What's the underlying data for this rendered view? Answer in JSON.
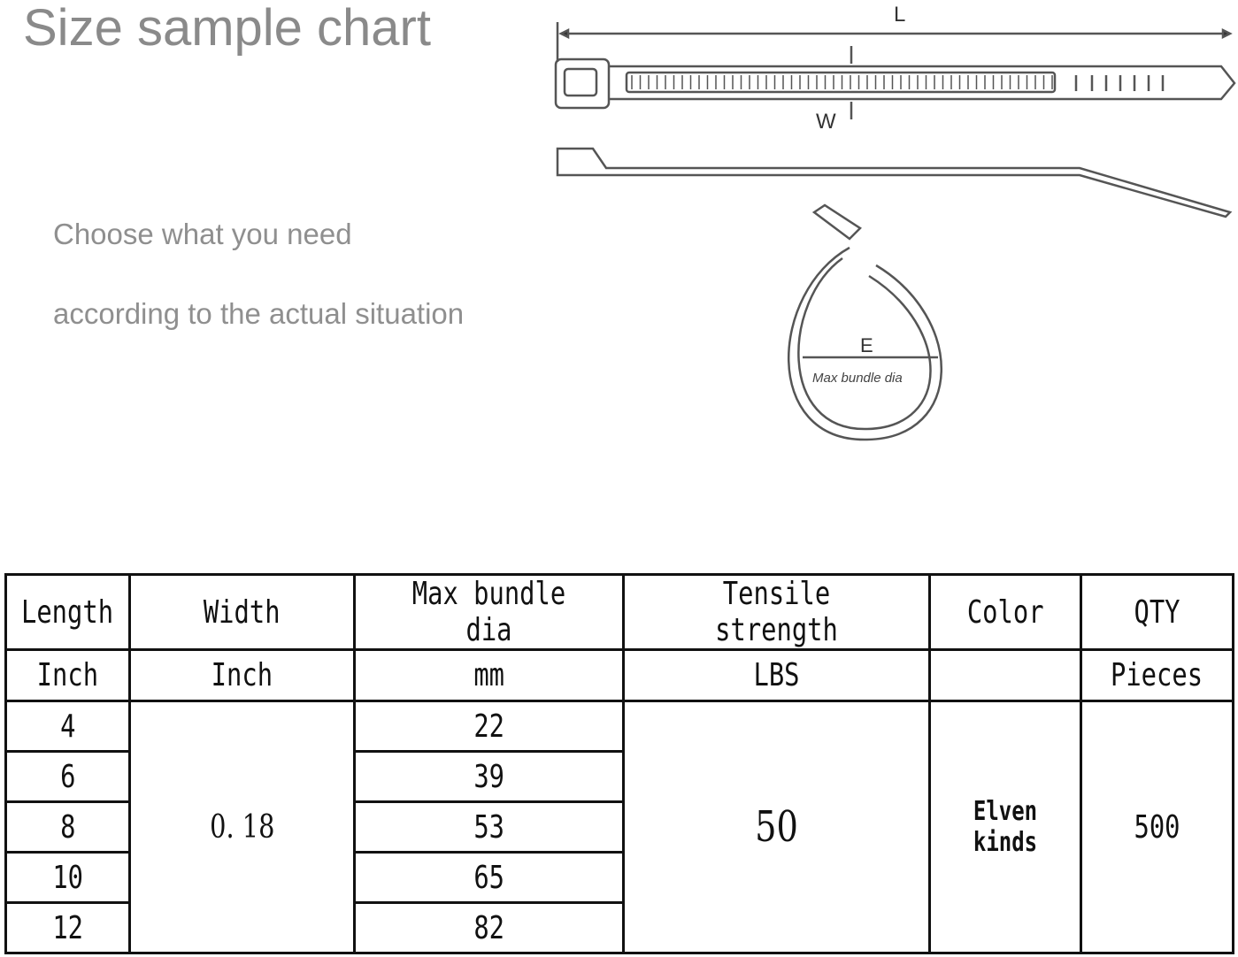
{
  "title": "Size sample chart",
  "subtitle_lines": [
    "Choose what you need",
    "according to the actual situation"
  ],
  "diagram": {
    "length_label": "L",
    "width_label": "W",
    "bundle_label": "E",
    "bundle_caption": "Max bundle dia"
  },
  "table": {
    "headers": [
      "Length",
      "Width",
      "Max bundle dia",
      "Tensile strength",
      "Color",
      "QTY"
    ],
    "units": [
      "Inch",
      "Inch",
      "mm",
      "LBS",
      "",
      "Pieces"
    ],
    "lengths": [
      "4",
      "6",
      "8",
      "10",
      "12"
    ],
    "width": "0. 18",
    "max_bundle_dia": [
      "22",
      "39",
      "53",
      "65",
      "82"
    ],
    "tensile_strength": "50",
    "color": "Elven kinds",
    "qty": "500"
  }
}
